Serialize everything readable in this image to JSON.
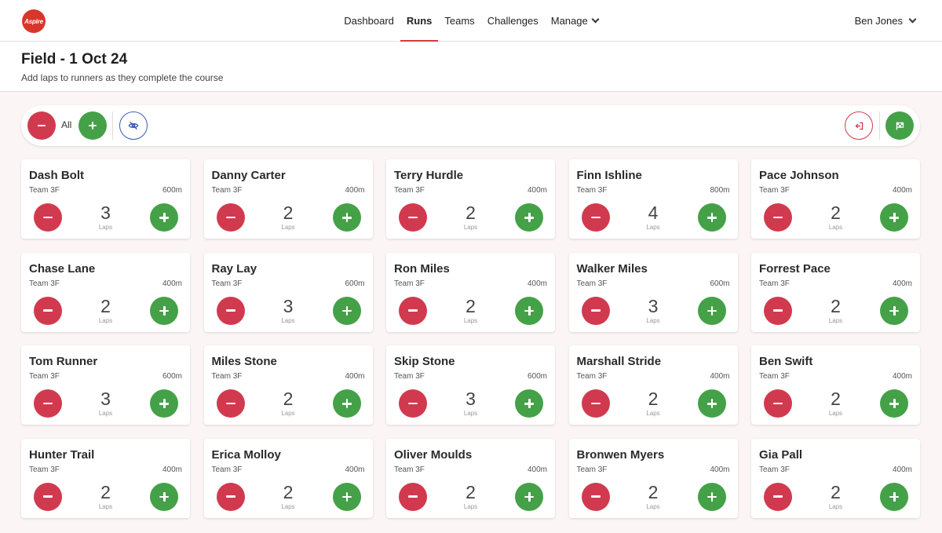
{
  "nav": {
    "logo_text": "Aspire",
    "links": [
      {
        "label": "Dashboard",
        "active": false
      },
      {
        "label": "Runs",
        "active": true
      },
      {
        "label": "Teams",
        "active": false
      },
      {
        "label": "Challenges",
        "active": false
      },
      {
        "label": "Manage",
        "active": false
      }
    ],
    "user": "Ben Jones"
  },
  "header": {
    "title": "Field - 1 Oct 24",
    "subtitle": "Add laps to runners as they complete the course"
  },
  "toolbar": {
    "all_label": "All"
  },
  "colors": {
    "accent_red": "#d13a4e",
    "accent_green": "#44a148",
    "accent_blue": "#3b5bb8"
  },
  "laps_label": "Laps",
  "runners": [
    {
      "name": "Dash Bolt",
      "team": "Team 3F",
      "distance": "600m",
      "laps": "3"
    },
    {
      "name": "Danny Carter",
      "team": "Team 3F",
      "distance": "400m",
      "laps": "2"
    },
    {
      "name": "Terry Hurdle",
      "team": "Team 3F",
      "distance": "400m",
      "laps": "2"
    },
    {
      "name": "Finn Ishline",
      "team": "Team 3F",
      "distance": "800m",
      "laps": "4"
    },
    {
      "name": "Pace Johnson",
      "team": "Team 3F",
      "distance": "400m",
      "laps": "2"
    },
    {
      "name": "Chase Lane",
      "team": "Team 3F",
      "distance": "400m",
      "laps": "2"
    },
    {
      "name": "Ray Lay",
      "team": "Team 3F",
      "distance": "600m",
      "laps": "3"
    },
    {
      "name": "Ron Miles",
      "team": "Team 3F",
      "distance": "400m",
      "laps": "2"
    },
    {
      "name": "Walker Miles",
      "team": "Team 3F",
      "distance": "600m",
      "laps": "3"
    },
    {
      "name": "Forrest Pace",
      "team": "Team 3F",
      "distance": "400m",
      "laps": "2"
    },
    {
      "name": "Tom Runner",
      "team": "Team 3F",
      "distance": "600m",
      "laps": "3"
    },
    {
      "name": "Miles Stone",
      "team": "Team 3F",
      "distance": "400m",
      "laps": "2"
    },
    {
      "name": "Skip Stone",
      "team": "Team 3F",
      "distance": "600m",
      "laps": "3"
    },
    {
      "name": "Marshall Stride",
      "team": "Team 3F",
      "distance": "400m",
      "laps": "2"
    },
    {
      "name": "Ben Swift",
      "team": "Team 3F",
      "distance": "400m",
      "laps": "2"
    },
    {
      "name": "Hunter Trail",
      "team": "Team 3F",
      "distance": "400m",
      "laps": "2"
    },
    {
      "name": "Erica Molloy",
      "team": "Team 3F",
      "distance": "400m",
      "laps": "2"
    },
    {
      "name": "Oliver Moulds",
      "team": "Team 3F",
      "distance": "400m",
      "laps": "2"
    },
    {
      "name": "Bronwen Myers",
      "team": "Team 3F",
      "distance": "400m",
      "laps": "2"
    },
    {
      "name": "Gia Pall",
      "team": "Team 3F",
      "distance": "400m",
      "laps": "2"
    }
  ]
}
